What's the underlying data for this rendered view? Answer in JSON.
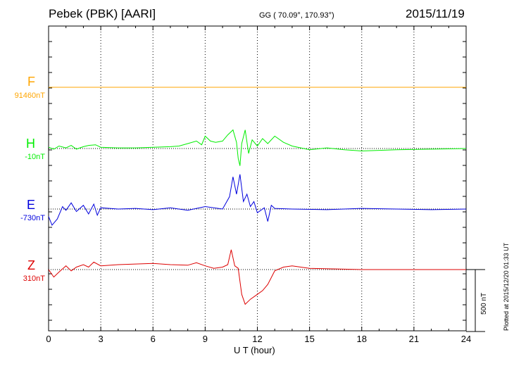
{
  "header": {
    "station": "Pebek (PBK)  [AARI]",
    "coords": "GG ( 70.09°, 170.93°)",
    "date": "2015/11/19"
  },
  "footer": {
    "plotted": "Plotted at 2015/12/20 01:33 UT",
    "scale": "500 nT"
  },
  "chart_data": {
    "type": "line",
    "xlabel": "U T (hour)",
    "xlim": [
      0,
      24
    ],
    "xticks": [
      "0",
      "3",
      "6",
      "9",
      "12",
      "15",
      "18",
      "21",
      "24"
    ],
    "grid": true,
    "scale_bar_nT": 500,
    "series": [
      {
        "name": "F",
        "baseline": "91460nT",
        "color": "#ffa500",
        "x": [
          0,
          2,
          4,
          6,
          8,
          10,
          12,
          14,
          16,
          18,
          20,
          22,
          24
        ],
        "y": [
          0,
          0,
          0,
          0,
          0,
          0,
          0,
          0,
          0,
          0,
          0,
          0,
          0
        ]
      },
      {
        "name": "H",
        "baseline": "-10nT",
        "color": "#00ee00",
        "x": [
          0,
          0.3,
          0.6,
          1.0,
          1.3,
          1.6,
          2.0,
          2.3,
          2.7,
          3.0,
          4.0,
          5.0,
          6.0,
          7.0,
          7.5,
          8.0,
          8.5,
          8.8,
          9.0,
          9.3,
          9.6,
          10.0,
          10.3,
          10.6,
          10.8,
          10.9,
          11.0,
          11.1,
          11.3,
          11.5,
          11.7,
          12.0,
          12.3,
          12.6,
          13.0,
          13.5,
          14.0,
          15.0,
          16.0,
          17.0,
          18.0,
          20.0,
          22.0,
          24.0
        ],
        "y": [
          10,
          -5,
          20,
          5,
          25,
          -5,
          15,
          25,
          30,
          10,
          5,
          5,
          10,
          15,
          20,
          40,
          60,
          30,
          100,
          60,
          50,
          60,
          110,
          150,
          50,
          -80,
          -140,
          40,
          150,
          -40,
          70,
          20,
          80,
          40,
          100,
          50,
          20,
          -10,
          5,
          -10,
          -20,
          -10,
          -5,
          0
        ]
      },
      {
        "name": "E",
        "baseline": "-730nT",
        "color": "#0000dd",
        "x": [
          0,
          0.2,
          0.5,
          0.8,
          1.0,
          1.3,
          1.6,
          2.0,
          2.3,
          2.6,
          2.8,
          3.0,
          4.0,
          5.0,
          6.0,
          7.0,
          8.0,
          9.0,
          10.0,
          10.4,
          10.6,
          10.8,
          11.0,
          11.2,
          11.4,
          11.6,
          11.8,
          12.0,
          12.4,
          12.6,
          12.8,
          13.0,
          14.0,
          16.0,
          18.0,
          20.0,
          22.0,
          24.0
        ],
        "y": [
          -60,
          -130,
          -80,
          20,
          -10,
          50,
          -20,
          30,
          -40,
          40,
          -50,
          10,
          0,
          5,
          -5,
          10,
          -10,
          20,
          0,
          100,
          260,
          120,
          280,
          60,
          120,
          20,
          60,
          -30,
          10,
          -100,
          30,
          5,
          0,
          -5,
          5,
          0,
          -5,
          0
        ]
      },
      {
        "name": "Z",
        "baseline": "310nT",
        "color": "#dd0000",
        "x": [
          0,
          0.3,
          0.6,
          1.0,
          1.3,
          1.6,
          2.0,
          2.3,
          2.6,
          3.0,
          4.0,
          5.0,
          6.0,
          7.0,
          8.0,
          8.5,
          9.0,
          9.5,
          10.0,
          10.3,
          10.5,
          10.7,
          10.9,
          11.1,
          11.3,
          11.6,
          12.0,
          12.3,
          12.6,
          13.0,
          13.5,
          14.0,
          15.0,
          18.0,
          21.0,
          24.0
        ],
        "y": [
          0,
          -60,
          -20,
          30,
          -10,
          20,
          40,
          20,
          60,
          30,
          40,
          45,
          50,
          40,
          35,
          55,
          30,
          10,
          20,
          40,
          160,
          30,
          10,
          -200,
          -280,
          -240,
          -200,
          -170,
          -120,
          -10,
          20,
          30,
          10,
          0,
          0,
          0
        ]
      }
    ]
  }
}
